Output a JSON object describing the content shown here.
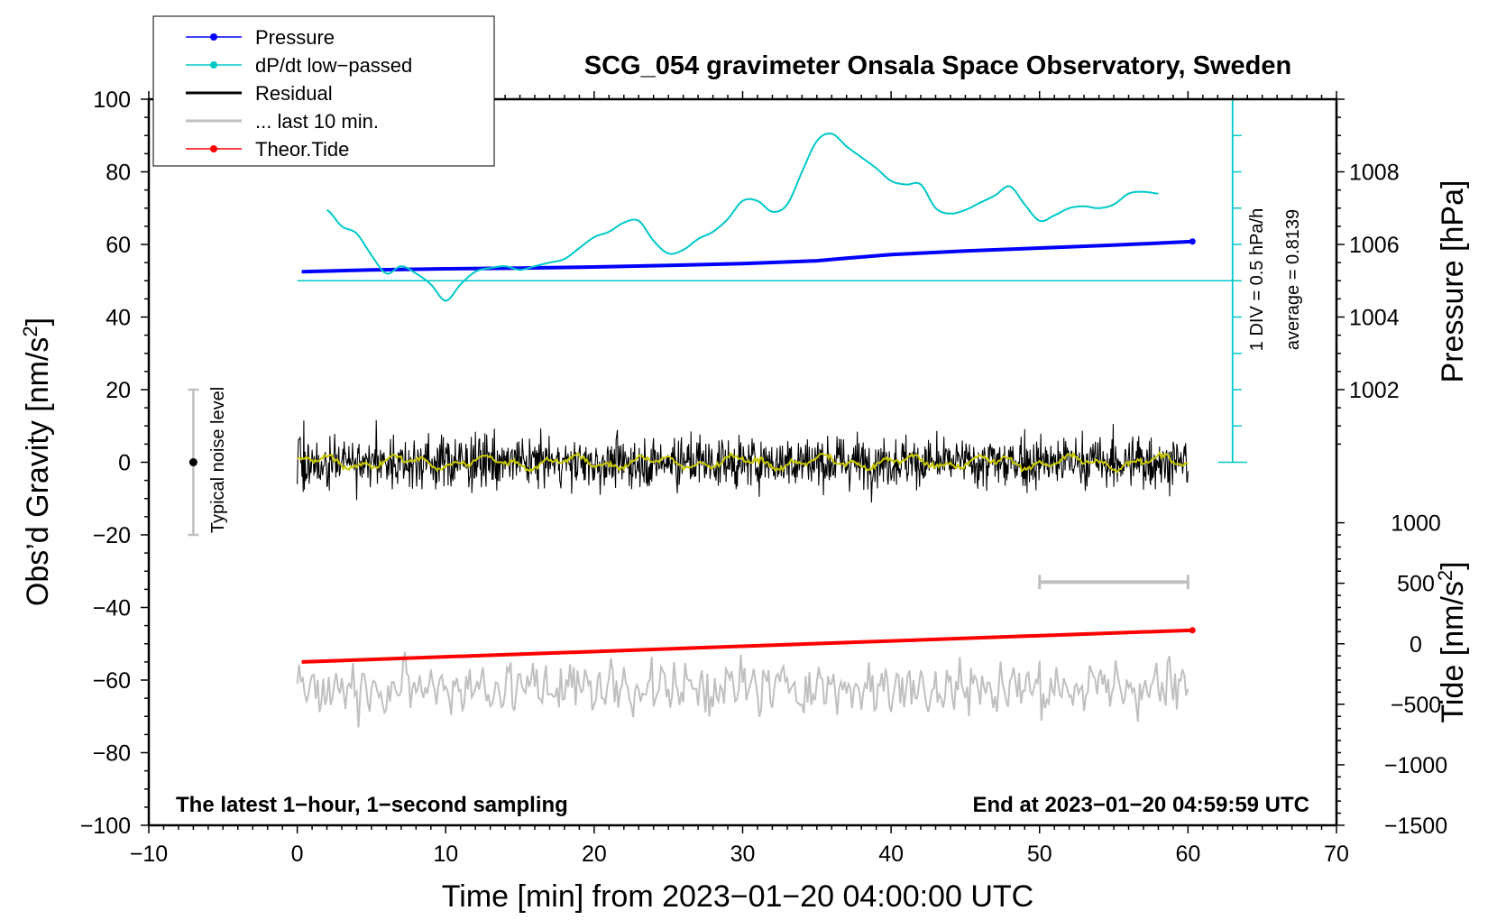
{
  "chart_data": {
    "type": "line",
    "title": "SCG_054 gravimeter Onsala Space Observatory, Sweden",
    "xlabel": "Time [min] from 2023−01−20 04:00:00 UTC",
    "ylabel_left": "Obs’d Gravity [nm/s",
    "ylabel_left_sup": "2",
    "ylabel_left_end": "]",
    "ylabel_right_pressure": "Pressure [hPa]",
    "ylabel_right_tide": "Tide [nm/s",
    "ylabel_right_tide_sup": "2",
    "ylabel_right_tide_end": "]",
    "xlim": [
      -10,
      70
    ],
    "ylim": [
      -100,
      100
    ],
    "x_ticks": [
      -10,
      0,
      10,
      20,
      30,
      40,
      50,
      60,
      70
    ],
    "x_tick_labels": [
      "−10",
      "0",
      "10",
      "20",
      "30",
      "40",
      "50",
      "60",
      "70"
    ],
    "y_ticks": [
      -100,
      -80,
      -60,
      -40,
      -20,
      0,
      20,
      40,
      60,
      80,
      100
    ],
    "y_tick_labels": [
      "−100",
      "−80",
      "−60",
      "−40",
      "−20",
      "0",
      "20",
      "40",
      "60",
      "80",
      "100"
    ],
    "pressure_axis": {
      "ticks": [
        1002,
        1004,
        1006,
        1008
      ],
      "tick_labels": [
        "1002",
        "1004",
        "1006",
        "1008"
      ],
      "gravity_at_1000": 0,
      "gravity_per_hpa": 10
    },
    "tide_axis": {
      "ticks": [
        -1500,
        -1000,
        -500,
        0,
        500,
        1000
      ],
      "tick_labels": [
        "−1500",
        "−1000",
        "−500",
        "0",
        "500",
        "1000"
      ],
      "gravity_at_0": -50,
      "gravity_per_unit": 0.03333
    },
    "series": [
      {
        "name": "Pressure",
        "color": "#0000ff",
        "unit": "hPa",
        "x": [
          0.3,
          5,
          10,
          15,
          20,
          25,
          30,
          35,
          37,
          40,
          45,
          50,
          55,
          60.3
        ],
        "values": [
          1005.25,
          1005.3,
          1005.33,
          1005.35,
          1005.38,
          1005.42,
          1005.47,
          1005.55,
          1005.62,
          1005.72,
          1005.82,
          1005.9,
          1005.98,
          1006.08
        ]
      },
      {
        "name": "dP/dt low−passed",
        "color": "#00c8c8",
        "unit": "gravity-axis units",
        "x": [
          2,
          3,
          4,
          5,
          6,
          7,
          8,
          9,
          10,
          11,
          12,
          13,
          14,
          15,
          16,
          17,
          18,
          19,
          20,
          21,
          22,
          23,
          24,
          25,
          26,
          27,
          28,
          29,
          30,
          31,
          32,
          33,
          34,
          35,
          36,
          37,
          38,
          39,
          40,
          41,
          42,
          43,
          44,
          45,
          46,
          47,
          48,
          49,
          50,
          51,
          52,
          53,
          54,
          55,
          56,
          57,
          58
        ],
        "values": [
          69.5,
          65,
          63,
          57,
          52,
          54,
          52,
          49,
          44.5,
          49,
          52.5,
          53.5,
          54,
          53,
          54,
          55,
          56,
          59,
          62,
          63.5,
          66,
          66.5,
          61,
          57.5,
          58.5,
          61.5,
          63.5,
          67,
          72,
          72,
          69,
          71,
          80,
          88.5,
          90.5,
          87,
          84,
          81,
          77.5,
          76.5,
          76.5,
          70,
          68.5,
          69.5,
          71.5,
          73.5,
          76,
          71,
          66.5,
          68,
          70,
          70.5,
          70,
          71,
          74,
          74.5,
          74
        ]
      },
      {
        "name": "Residual",
        "color": "#000000",
        "x_range": [
          0,
          60
        ],
        "amplitude": "approx. ±12"
      },
      {
        "name": "... last 10 min.",
        "color": "#c0c0c0",
        "x_range": [
          0,
          60
        ],
        "center": -62,
        "amplitude": "approx. ±10"
      },
      {
        "name": "Theor.Tide",
        "color": "#ff0000",
        "unit": "nm/s²",
        "x": [
          0.3,
          60.3
        ],
        "values": [
          -150,
          112
        ]
      }
    ],
    "residual_average_line": {
      "color": "#c8c800",
      "value": 0
    },
    "dpdt_scale": {
      "label_div": "1 DIV = 0.5 hPa/h",
      "label_avg": "average = 0.8139",
      "x": 63,
      "baseline": 50,
      "ymin": 0,
      "ymax": 100,
      "div_step": 10
    },
    "noise_bar": {
      "label": "Typical noise level",
      "x": -7,
      "low": -20,
      "high": 20,
      "center": 0
    },
    "ten_min_bar": {
      "x_start": 50,
      "x_end": 60,
      "y": -33
    },
    "legend": {
      "placement": "top-left",
      "entries": [
        {
          "label": "Pressure",
          "color": "#0000ff",
          "style": "line-dot"
        },
        {
          "label": "dP/dt low−passed",
          "color": "#00c8c8",
          "style": "line-dot"
        },
        {
          "label": "Residual",
          "color": "#000000",
          "style": "line"
        },
        {
          "label": "... last 10 min.",
          "color": "#c0c0c0",
          "style": "line"
        },
        {
          "label": "Theor.Tide",
          "color": "#ff0000",
          "style": "line-dot"
        }
      ]
    },
    "annotations": {
      "bottom_left": "The latest 1−hour, 1−second sampling",
      "bottom_right": "End at 2023−01−20 04:59:59 UTC"
    }
  }
}
